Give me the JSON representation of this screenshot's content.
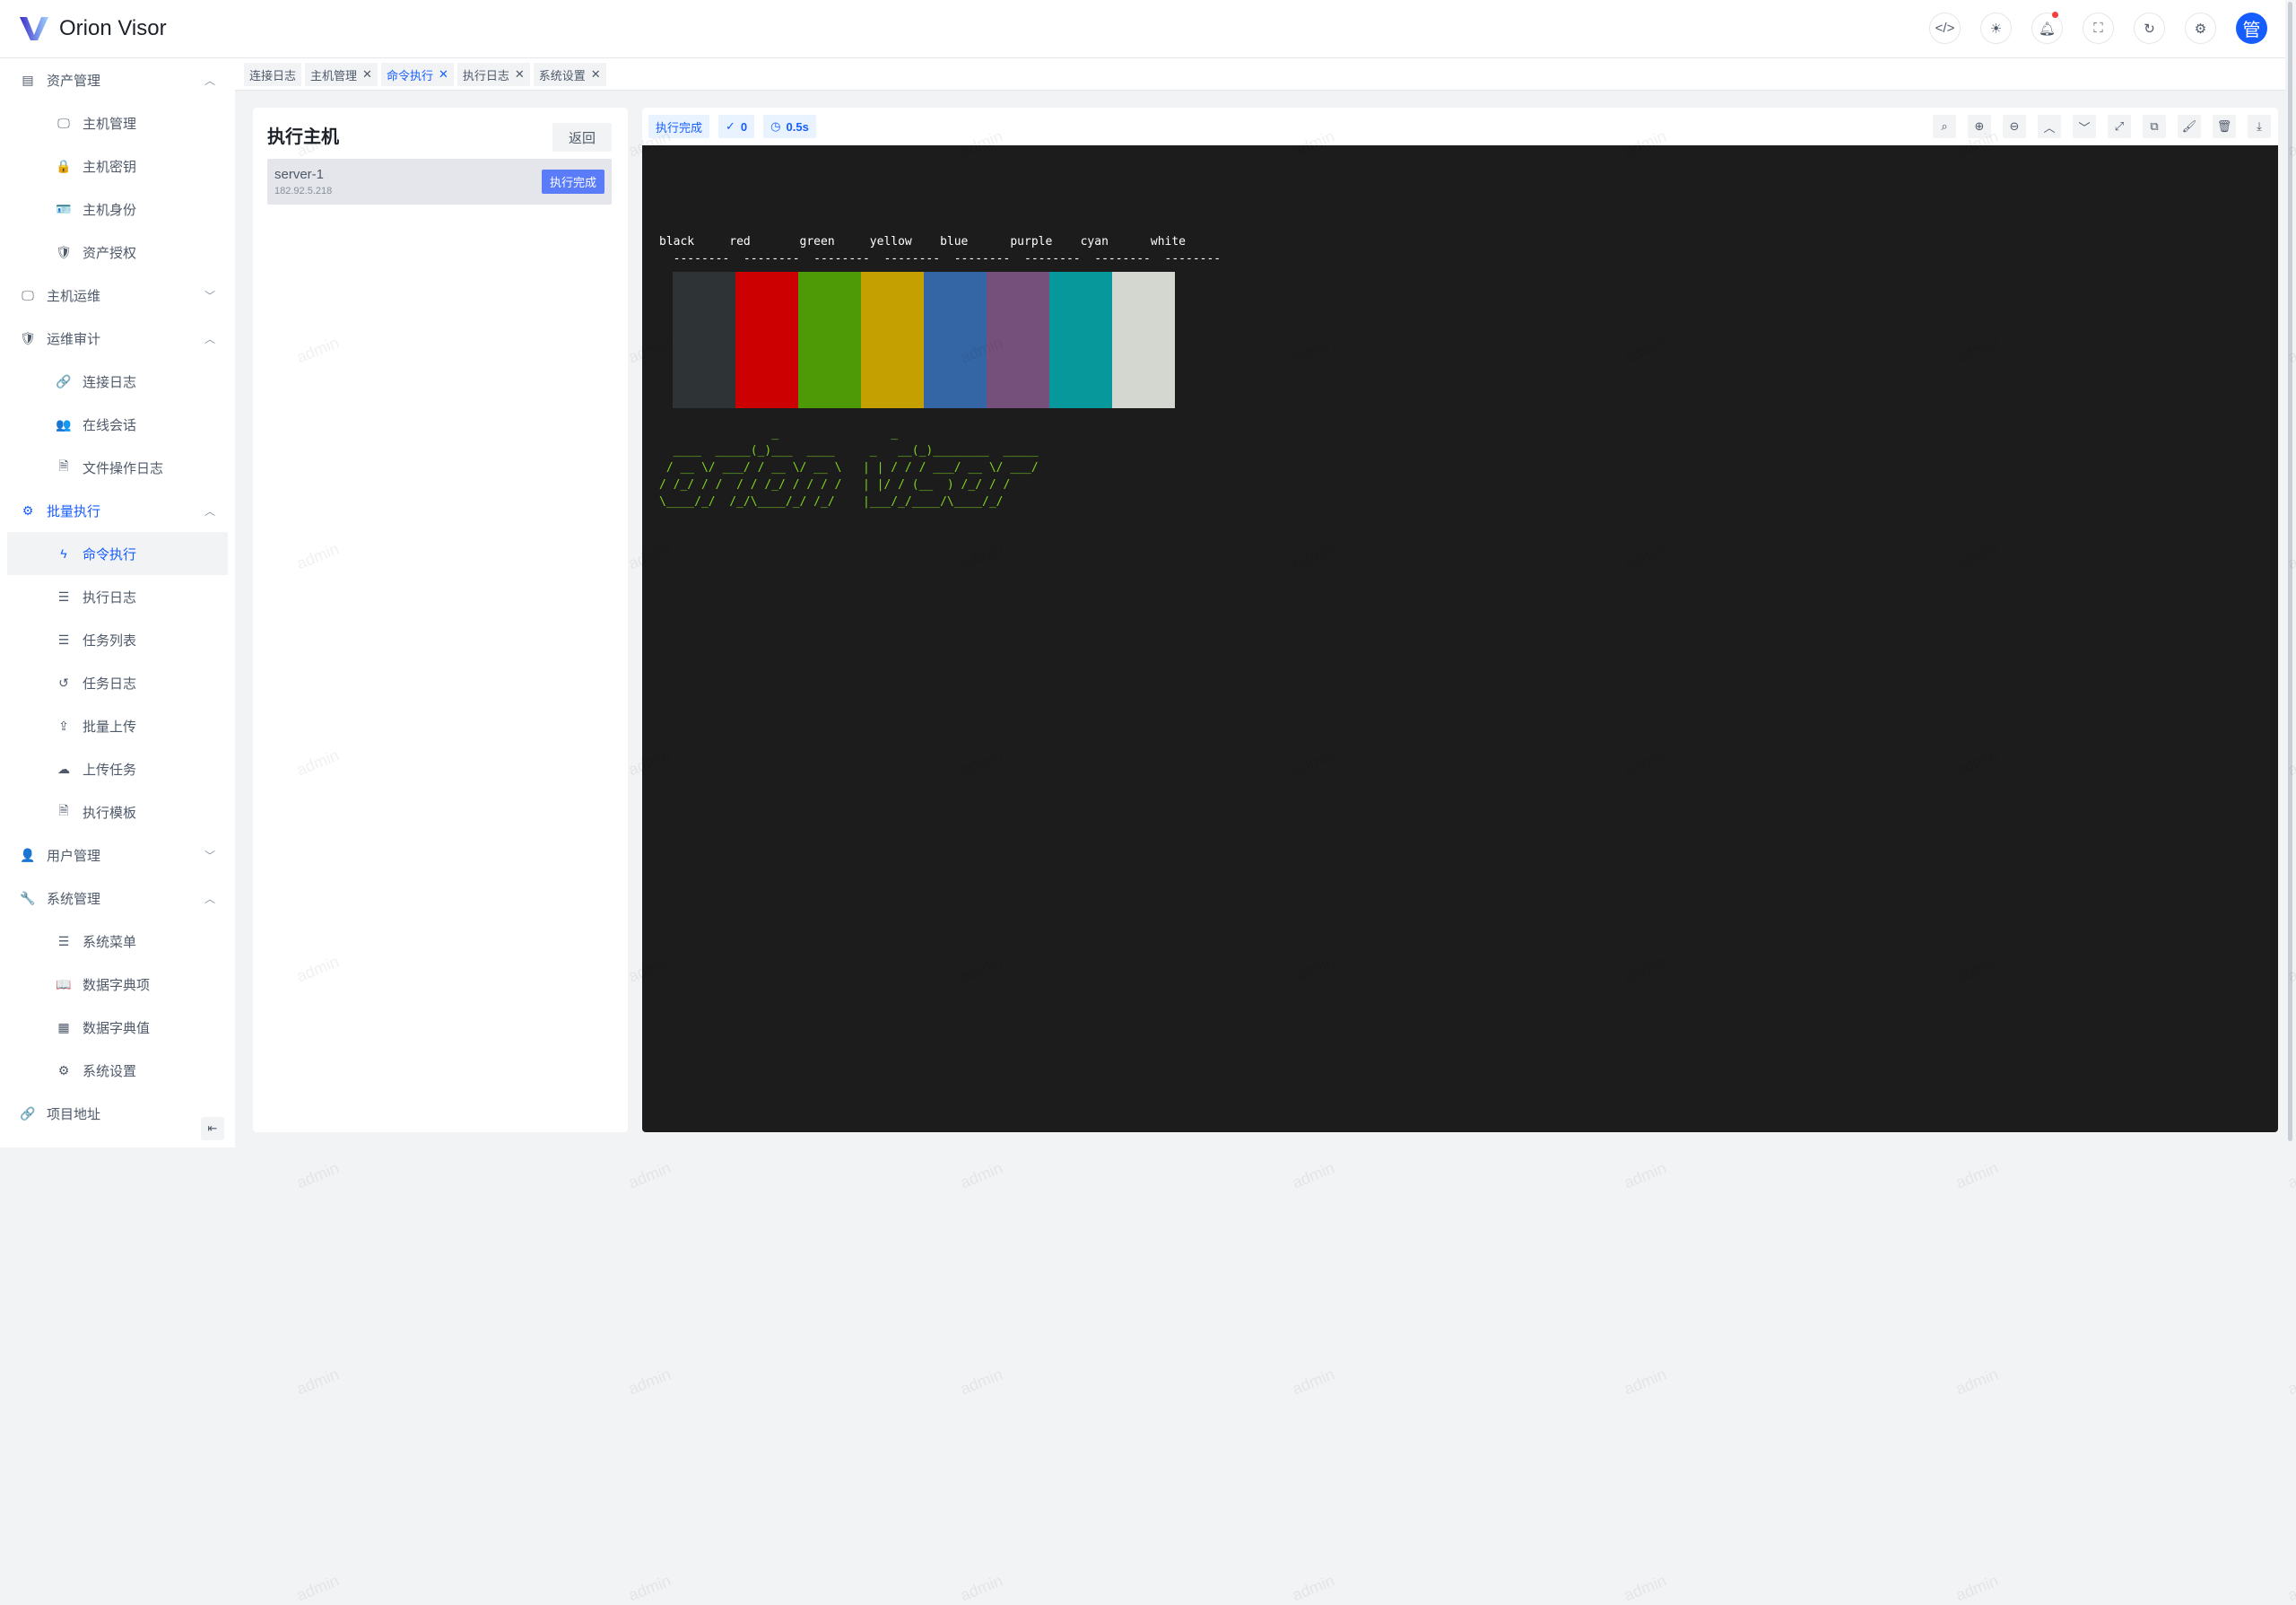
{
  "app": {
    "title": "Orion Visor",
    "avatar": "管"
  },
  "header_icons": [
    "code-icon",
    "theme-icon",
    "bell-icon",
    "fullscreen-icon",
    "refresh-icon",
    "gear-icon"
  ],
  "sidebar": [
    {
      "label": "资产管理",
      "icon": "▤",
      "type": "group",
      "expanded": true
    },
    {
      "label": "主机管理",
      "icon": "🖵",
      "type": "sub"
    },
    {
      "label": "主机密钥",
      "icon": "🔒",
      "type": "sub"
    },
    {
      "label": "主机身份",
      "icon": "🪪",
      "type": "sub"
    },
    {
      "label": "资产授权",
      "icon": "🛡",
      "type": "sub"
    },
    {
      "label": "主机运维",
      "icon": "🖵",
      "type": "group",
      "expanded": false
    },
    {
      "label": "运维审计",
      "icon": "🛡",
      "type": "group",
      "expanded": true
    },
    {
      "label": "连接日志",
      "icon": "🔗",
      "type": "sub"
    },
    {
      "label": "在线会话",
      "icon": "👥",
      "type": "sub"
    },
    {
      "label": "文件操作日志",
      "icon": "🗎",
      "type": "sub"
    },
    {
      "label": "批量执行",
      "icon": "⚙",
      "type": "group",
      "expanded": true,
      "active": true
    },
    {
      "label": "命令执行",
      "icon": "ϟ",
      "type": "sub",
      "active": true
    },
    {
      "label": "执行日志",
      "icon": "☰",
      "type": "sub"
    },
    {
      "label": "任务列表",
      "icon": "☰",
      "type": "sub"
    },
    {
      "label": "任务日志",
      "icon": "↺",
      "type": "sub"
    },
    {
      "label": "批量上传",
      "icon": "⇪",
      "type": "sub"
    },
    {
      "label": "上传任务",
      "icon": "☁",
      "type": "sub"
    },
    {
      "label": "执行模板",
      "icon": "🗎",
      "type": "sub"
    },
    {
      "label": "用户管理",
      "icon": "👤",
      "type": "group",
      "expanded": false
    },
    {
      "label": "系统管理",
      "icon": "🔧",
      "type": "group",
      "expanded": true
    },
    {
      "label": "系统菜单",
      "icon": "☰",
      "type": "sub"
    },
    {
      "label": "数据字典项",
      "icon": "📖",
      "type": "sub"
    },
    {
      "label": "数据字典值",
      "icon": "▦",
      "type": "sub"
    },
    {
      "label": "系统设置",
      "icon": "⚙",
      "type": "sub"
    },
    {
      "label": "项目地址",
      "icon": "🔗",
      "type": "group"
    }
  ],
  "tabs": [
    {
      "label": "连接日志",
      "closable": false
    },
    {
      "label": "主机管理",
      "closable": true
    },
    {
      "label": "命令执行",
      "closable": true,
      "active": true
    },
    {
      "label": "执行日志",
      "closable": true
    },
    {
      "label": "系统设置",
      "closable": true
    }
  ],
  "left_panel": {
    "title": "执行主机",
    "back_label": "返回",
    "host": {
      "name": "server-1",
      "ip": "182.92.5.218",
      "status": "执行完成"
    }
  },
  "right_panel": {
    "status": "执行完成",
    "exit_code": "0",
    "duration": "0.5s",
    "tools": [
      "search-icon",
      "zoom-in-icon",
      "zoom-out-icon",
      "chevron-up-icon",
      "chevron-down-icon",
      "expand-icon",
      "copy-icon",
      "paint-icon",
      "trash-icon",
      "download-icon"
    ]
  },
  "terminal": {
    "labels": "black     red       green     yellow    blue      purple    cyan      white",
    "dashes": "  --------  --------  --------  --------  --------  --------  --------  --------",
    "colors": [
      "#2e3436",
      "#cc0000",
      "#4e9a06",
      "#c4a000",
      "#3465a4",
      "#75507b",
      "#06989a",
      "#d3d7cf"
    ],
    "ascii": "                _                _\n  ____  _____(_)___  ____     _   __(_)________  _____\n / __ \\/ ___/ / __ \\/ __ \\   | | / / / ___/ __ \\/ ___/\n/ /_/ / /  / / /_/ / / / /   | |/ / (__  ) /_/ / /\n\\____/_/  /_/\\____/_/ /_/    |___/_/____/\\____/_/",
    "ascii_color": "#7ed321"
  },
  "watermark": "admin"
}
